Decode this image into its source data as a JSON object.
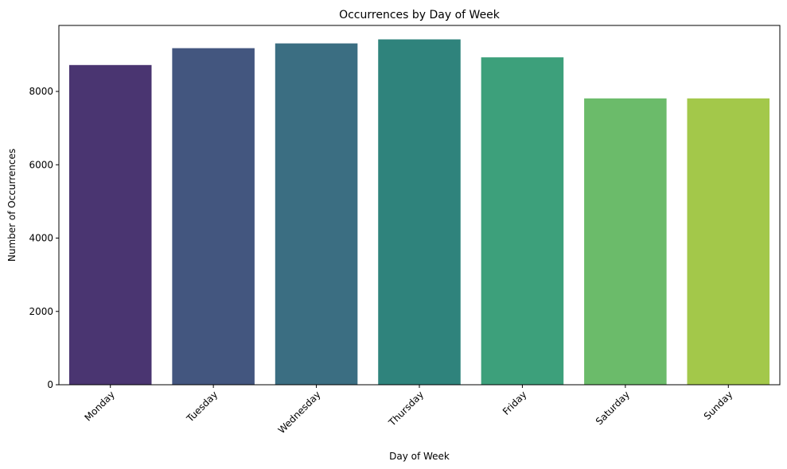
{
  "chart_data": {
    "type": "bar",
    "title": "Occurrences by Day of Week",
    "xlabel": "Day of Week",
    "ylabel": "Number of Occurrences",
    "categories": [
      "Monday",
      "Tuesday",
      "Wednesday",
      "Thursday",
      "Friday",
      "Saturday",
      "Sunday"
    ],
    "values": [
      8720,
      9180,
      9310,
      9420,
      8930,
      7810,
      7810
    ],
    "colors": [
      "#4a3571",
      "#43567f",
      "#3b6e82",
      "#2f837c",
      "#3da07b",
      "#6bbb6a",
      "#a3c84a"
    ],
    "ylim": [
      0,
      9800
    ],
    "yticks": [
      0,
      2000,
      4000,
      6000,
      8000
    ],
    "ytick_labels": [
      "0",
      "2000",
      "4000",
      "6000",
      "8000"
    ],
    "grid": false,
    "legend": "none"
  }
}
